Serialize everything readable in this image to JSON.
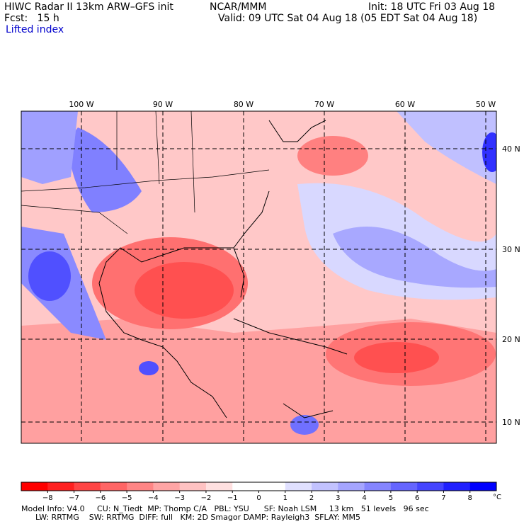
{
  "header": {
    "title": "HIWC Radar II 13km ARW–GFS init",
    "org": "NCAR/MMM",
    "init": "Init: 18 UTC Fri 03 Aug 18",
    "fcst": "Fcst:   15 h",
    "valid": "Valid: 09 UTC Sat 04 Aug 18 (05 EDT Sat 04 Aug 18)",
    "field": "Lifted index"
  },
  "map": {
    "lon_labels": [
      "100 W",
      "90 W",
      "80 W",
      "70 W",
      "60 W",
      "50 W"
    ],
    "lat_labels": [
      "40 N",
      "30 N",
      "20 N",
      "10 N"
    ]
  },
  "colorbar": {
    "ticks": [
      "−8",
      "−7",
      "−6",
      "−5",
      "−4",
      "−3",
      "−2",
      "−1",
      "0",
      "1",
      "2",
      "3",
      "4",
      "5",
      "6",
      "7",
      "8"
    ],
    "unit": "°C",
    "colors": [
      "#ff0000",
      "#ff2020",
      "#ff4545",
      "#ff6565",
      "#ff8585",
      "#ffa5a5",
      "#ffc2c2",
      "#ffe0e0",
      "#ffffff",
      "#ffffff",
      "#e0e0ff",
      "#c2c2ff",
      "#a5a5ff",
      "#8585ff",
      "#6565ff",
      "#4545ff",
      "#2020ff",
      "#0000ff"
    ]
  },
  "footer": {
    "line1": "Model Info: V4.0     CU: N_Tiedt  MP: Thomp C/A   PBL: YSU      SF: Noah LSM     13 km   51 levels   96 sec",
    "line2": "LW: RRTMG    SW: RRTMG  DIFF: full   KM: 2D Smagor DAMP: Rayleigh3  SFLAY: MM5"
  }
}
